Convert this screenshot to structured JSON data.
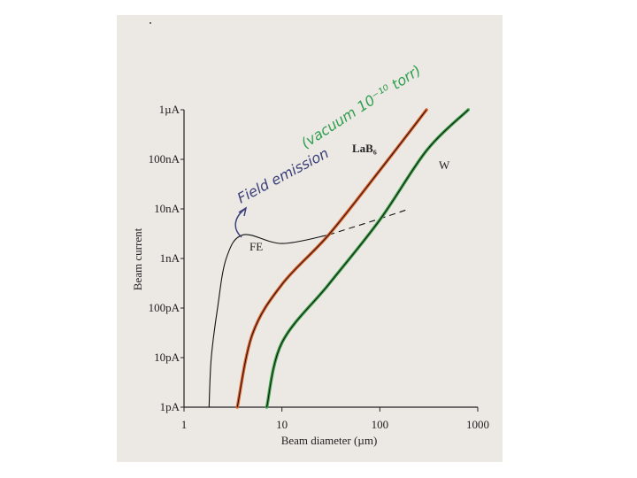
{
  "chart_data": {
    "type": "line",
    "xlabel": "Beam diameter (µm)",
    "ylabel": "Beam current",
    "x_scale": "log",
    "y_scale": "log",
    "xlim": [
      1,
      1000
    ],
    "ylim": [
      "1pA",
      "1µA"
    ],
    "x_ticks": [
      "1",
      "10",
      "100",
      "1000"
    ],
    "y_ticks": [
      "1pA",
      "10pA",
      "100pA",
      "1nA",
      "10nA",
      "100nA",
      "1µA"
    ],
    "series": [
      {
        "name": "FE",
        "color": "#111111",
        "unit_x": "µm",
        "points_solid": [
          [
            1.8,
            1e-12
          ],
          [
            1.9,
            1e-11
          ],
          [
            2.2,
            1e-10
          ],
          [
            2.7,
            1e-09
          ],
          [
            4.0,
            3e-09
          ],
          [
            10,
            2e-09
          ],
          [
            30,
            3e-09
          ]
        ],
        "points_dashed": [
          [
            30,
            3e-09
          ],
          [
            80,
            5.5e-09
          ],
          [
            200,
            1e-08
          ]
        ]
      },
      {
        "name": "LaB₆",
        "color": "#e0622a",
        "points": [
          [
            3.5,
            1e-12
          ],
          [
            5,
            3e-11
          ],
          [
            10,
            3e-10
          ],
          [
            30,
            3e-09
          ],
          [
            100,
            6e-08
          ],
          [
            300,
            1e-06
          ]
        ]
      },
      {
        "name": "W",
        "color": "#3ea24a",
        "points": [
          [
            7,
            1e-12
          ],
          [
            10,
            2e-11
          ],
          [
            30,
            3e-10
          ],
          [
            100,
            6e-09
          ],
          [
            300,
            1.5e-07
          ],
          [
            800,
            1e-06
          ]
        ]
      }
    ],
    "annotations": {
      "fe_handwritten": "Field emission",
      "vacuum_handwritten": "(vacuum 10⁻¹⁰ torr)"
    }
  }
}
